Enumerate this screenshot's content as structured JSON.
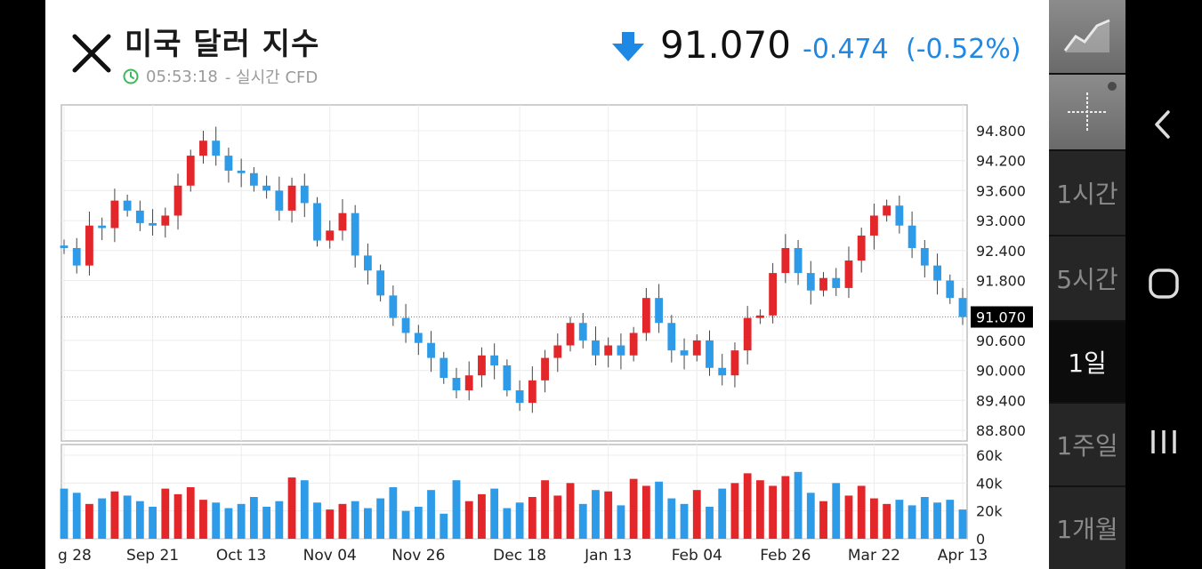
{
  "header": {
    "title": "미국 달러 지수",
    "time": "05:53:18",
    "subtitle_suffix": "- 실시간 CFD",
    "price": "91.070",
    "change": "-0.474",
    "change_pct": "(-0.52%)",
    "change_color": "#1e88e5"
  },
  "sidebar": {
    "timeframes": [
      "1시간",
      "5시간",
      "1일",
      "1주일",
      "1개월"
    ],
    "active": "1일"
  },
  "chart_data": {
    "type": "candlestick",
    "x_tick_labels": [
      "g 28",
      "Sep 21",
      "Oct 13",
      "Nov 04",
      "Nov 26",
      "Dec 18",
      "Jan 13",
      "Feb 04",
      "Feb 26",
      "Mar 22",
      "Apr 13"
    ],
    "y_ticks": [
      "94.800",
      "94.200",
      "93.600",
      "93.000",
      "92.400",
      "91.800",
      "90.600",
      "90.000",
      "89.400",
      "88.800"
    ],
    "y_range": [
      88.8,
      94.8
    ],
    "last_price": 91.07,
    "last_price_label": "91.070",
    "volume_ticks": [
      "60k",
      "40k",
      "20k",
      "0"
    ],
    "volume_range": [
      0,
      60000
    ],
    "up_color": "#e3262a",
    "down_color": "#2d9be8",
    "close": [
      92.45,
      92.1,
      92.9,
      92.85,
      93.4,
      93.2,
      92.95,
      92.9,
      93.1,
      93.7,
      94.3,
      94.6,
      94.3,
      94.0,
      93.95,
      93.7,
      93.6,
      93.2,
      93.7,
      93.35,
      92.6,
      92.8,
      93.15,
      92.3,
      92.0,
      91.5,
      91.05,
      90.75,
      90.55,
      90.25,
      89.85,
      89.6,
      89.9,
      90.3,
      90.1,
      89.6,
      89.35,
      89.8,
      90.25,
      90.5,
      90.95,
      90.6,
      90.3,
      90.5,
      90.3,
      90.75,
      91.45,
      90.95,
      90.4,
      90.3,
      90.6,
      90.05,
      89.9,
      90.4,
      91.05,
      91.1,
      91.95,
      92.45,
      91.95,
      91.6,
      91.85,
      91.65,
      92.2,
      92.7,
      93.1,
      93.3,
      92.9,
      92.45,
      92.1,
      91.8,
      91.45,
      91.07
    ],
    "volume": [
      36000,
      33000,
      25000,
      29000,
      34000,
      31000,
      27000,
      23000,
      36000,
      32000,
      37000,
      28000,
      26000,
      22000,
      25000,
      30000,
      23000,
      27000,
      44000,
      42000,
      26000,
      21000,
      25000,
      27000,
      22000,
      29000,
      37000,
      20000,
      23000,
      35000,
      18000,
      42000,
      27000,
      32000,
      36000,
      22000,
      26000,
      30000,
      42000,
      31000,
      40000,
      25000,
      35000,
      34000,
      24000,
      43000,
      38000,
      41000,
      29000,
      25000,
      35000,
      23000,
      36000,
      40000,
      47000,
      42000,
      38000,
      45000,
      48000,
      33000,
      27000,
      40000,
      31000,
      38000,
      29000,
      25000,
      28000,
      24000,
      30000,
      26000,
      28000,
      21000
    ],
    "grid": true
  }
}
